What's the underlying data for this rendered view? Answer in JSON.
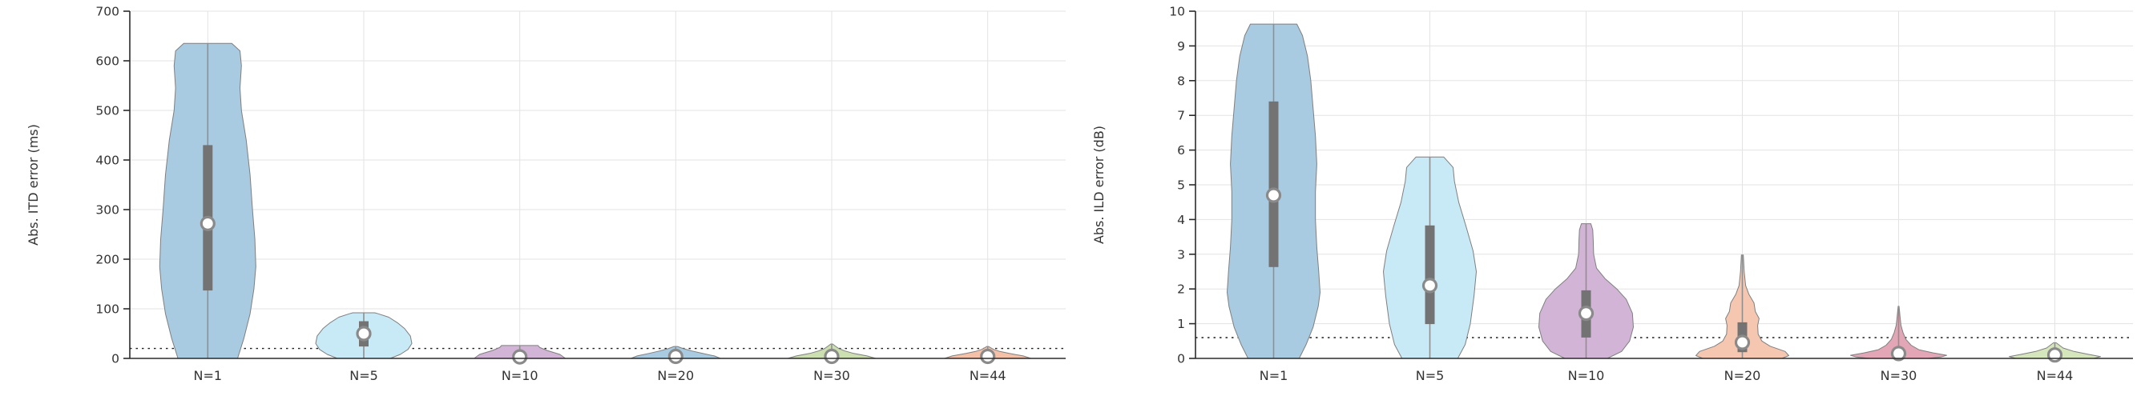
{
  "figure": {
    "background": "#ffffff"
  },
  "style": {
    "violin_edge": "#7f7f7f",
    "box_color": "#737373",
    "whisker_color": "#8f8f8f",
    "median_fill": "#ffffff",
    "median_ring": "#8a8a8a",
    "grid_color": "#e3e3e3",
    "axis_color": "#2b2b2b",
    "threshold_color": "#1f1f1f",
    "tick_label_color": "#333333"
  },
  "chart_data": [
    {
      "type": "violin",
      "title": "",
      "xlabel": "",
      "ylabel": "Abs. ITD error (ms)",
      "ylim": [
        0,
        700
      ],
      "yticks": [
        0,
        100,
        200,
        300,
        400,
        500,
        600,
        700
      ],
      "categories": [
        "N=1",
        "N=5",
        "N=10",
        "N=20",
        "N=30",
        "N=44"
      ],
      "threshold_line": 20,
      "grid": true,
      "legend": "none",
      "violins": [
        {
          "label": "N=1",
          "color": "#a9cbe2",
          "min": 0,
          "max": 635,
          "q1": 137,
          "q3": 430,
          "median": 272,
          "max_halfwidth": 60,
          "profile": [
            [
              0,
              0.62
            ],
            [
              40,
              0.75
            ],
            [
              90,
              0.88
            ],
            [
              140,
              0.96
            ],
            [
              185,
              1.0
            ],
            [
              240,
              0.98
            ],
            [
              300,
              0.93
            ],
            [
              370,
              0.88
            ],
            [
              440,
              0.8
            ],
            [
              500,
              0.7
            ],
            [
              545,
              0.67
            ],
            [
              590,
              0.7
            ],
            [
              620,
              0.67
            ],
            [
              635,
              0.5
            ]
          ]
        },
        {
          "label": "N=5",
          "color": "#c8e9f6",
          "min": 0,
          "max": 92,
          "q1": 24,
          "q3": 75,
          "median": 50,
          "max_halfwidth": 60,
          "profile": [
            [
              0,
              0.55
            ],
            [
              8,
              0.76
            ],
            [
              18,
              0.92
            ],
            [
              30,
              1.0
            ],
            [
              45,
              0.97
            ],
            [
              60,
              0.85
            ],
            [
              72,
              0.7
            ],
            [
              83,
              0.52
            ],
            [
              90,
              0.3
            ],
            [
              92,
              0.23
            ]
          ]
        },
        {
          "label": "N=10",
          "color": "#d2b4d6",
          "min": 0,
          "max": 26,
          "q1": 1,
          "q3": 9,
          "median": 3,
          "max_halfwidth": 57,
          "profile": [
            [
              0,
              1.0
            ],
            [
              8,
              0.88
            ],
            [
              16,
              0.6
            ],
            [
              22,
              0.44
            ],
            [
              26,
              0.4
            ]
          ]
        },
        {
          "label": "N=20",
          "color": "#a9cbe2",
          "min": 0,
          "max": 24,
          "q1": 1,
          "q3": 8,
          "median": 4,
          "max_halfwidth": 56,
          "profile": [
            [
              0,
              1.0
            ],
            [
              5,
              0.86
            ],
            [
              10,
              0.6
            ],
            [
              15,
              0.36
            ],
            [
              20,
              0.16
            ],
            [
              24,
              0.04
            ]
          ]
        },
        {
          "label": "N=30",
          "color": "#cbdfb0",
          "min": 0,
          "max": 29,
          "q1": 1,
          "q3": 9,
          "median": 4,
          "max_halfwidth": 55,
          "profile": [
            [
              0,
              1.0
            ],
            [
              5,
              0.8
            ],
            [
              10,
              0.5
            ],
            [
              15,
              0.3
            ],
            [
              20,
              0.16
            ],
            [
              25,
              0.08
            ],
            [
              29,
              0.02
            ]
          ]
        },
        {
          "label": "N=44",
          "color": "#f4c0a8",
          "min": 0,
          "max": 24,
          "q1": 1,
          "q3": 8,
          "median": 4,
          "max_halfwidth": 54,
          "profile": [
            [
              0,
              1.0
            ],
            [
              5,
              0.82
            ],
            [
              10,
              0.5
            ],
            [
              14,
              0.28
            ],
            [
              18,
              0.14
            ],
            [
              22,
              0.06
            ],
            [
              24,
              0.02
            ]
          ]
        }
      ]
    },
    {
      "type": "violin",
      "title": "",
      "xlabel": "",
      "ylabel": "Abs. ILD error (dB)",
      "ylim": [
        0,
        10
      ],
      "yticks": [
        0,
        1,
        2,
        3,
        4,
        5,
        6,
        7,
        8,
        9,
        10
      ],
      "categories": [
        "N=1",
        "N=5",
        "N=10",
        "N=20",
        "N=30",
        "N=44"
      ],
      "threshold_line": 0.6,
      "grid": true,
      "legend": "none",
      "violins": [
        {
          "label": "N=1",
          "color": "#a9cbe2",
          "min": 0,
          "max": 9.63,
          "q1": 2.63,
          "q3": 7.4,
          "median": 4.7,
          "max_halfwidth": 58,
          "profile": [
            [
              0,
              0.55
            ],
            [
              0.4,
              0.7
            ],
            [
              0.9,
              0.85
            ],
            [
              1.5,
              0.96
            ],
            [
              1.9,
              1.0
            ],
            [
              2.5,
              0.97
            ],
            [
              3.2,
              0.93
            ],
            [
              4.0,
              0.9
            ],
            [
              4.8,
              0.9
            ],
            [
              5.6,
              0.93
            ],
            [
              6.4,
              0.9
            ],
            [
              7.2,
              0.85
            ],
            [
              8.0,
              0.8
            ],
            [
              8.7,
              0.73
            ],
            [
              9.3,
              0.62
            ],
            [
              9.63,
              0.5
            ]
          ]
        },
        {
          "label": "N=5",
          "color": "#c8e9f6",
          "min": 0,
          "max": 5.8,
          "q1": 0.99,
          "q3": 3.83,
          "median": 2.1,
          "max_halfwidth": 58,
          "profile": [
            [
              0,
              0.6
            ],
            [
              0.4,
              0.76
            ],
            [
              1.0,
              0.87
            ],
            [
              1.8,
              0.95
            ],
            [
              2.5,
              1.0
            ],
            [
              3.1,
              0.93
            ],
            [
              3.8,
              0.78
            ],
            [
              4.5,
              0.62
            ],
            [
              5.1,
              0.53
            ],
            [
              5.5,
              0.5
            ],
            [
              5.8,
              0.3
            ]
          ]
        },
        {
          "label": "N=10",
          "color": "#d2b4d6",
          "min": 0,
          "max": 3.88,
          "q1": 0.6,
          "q3": 1.96,
          "median": 1.3,
          "max_halfwidth": 59,
          "profile": [
            [
              0,
              0.45
            ],
            [
              0.2,
              0.75
            ],
            [
              0.5,
              0.92
            ],
            [
              0.9,
              1.0
            ],
            [
              1.3,
              0.98
            ],
            [
              1.7,
              0.85
            ],
            [
              2.0,
              0.65
            ],
            [
              2.3,
              0.4
            ],
            [
              2.6,
              0.22
            ],
            [
              3.0,
              0.16
            ],
            [
              3.4,
              0.15
            ],
            [
              3.7,
              0.14
            ],
            [
              3.88,
              0.1
            ]
          ]
        },
        {
          "label": "N=20",
          "color": "#f5c7b0",
          "min": 0,
          "max": 2.98,
          "q1": 0.18,
          "q3": 1.04,
          "median": 0.46,
          "max_halfwidth": 58,
          "profile": [
            [
              0,
              0.85
            ],
            [
              0.08,
              1.0
            ],
            [
              0.2,
              0.92
            ],
            [
              0.35,
              0.6
            ],
            [
              0.5,
              0.42
            ],
            [
              0.7,
              0.34
            ],
            [
              0.95,
              0.33
            ],
            [
              1.15,
              0.36
            ],
            [
              1.35,
              0.28
            ],
            [
              1.6,
              0.25
            ],
            [
              1.85,
              0.14
            ],
            [
              2.1,
              0.07
            ],
            [
              2.5,
              0.04
            ],
            [
              2.98,
              0.02
            ]
          ]
        },
        {
          "label": "N=30",
          "color": "#e2a6b6",
          "min": 0,
          "max": 1.5,
          "q1": 0.04,
          "q3": 0.32,
          "median": 0.14,
          "max_halfwidth": 60,
          "profile": [
            [
              0,
              0.6
            ],
            [
              0.04,
              0.88
            ],
            [
              0.09,
              1.0
            ],
            [
              0.16,
              0.72
            ],
            [
              0.25,
              0.42
            ],
            [
              0.38,
              0.26
            ],
            [
              0.55,
              0.15
            ],
            [
              0.75,
              0.09
            ],
            [
              0.95,
              0.05
            ],
            [
              1.2,
              0.03
            ],
            [
              1.5,
              0.01
            ]
          ]
        },
        {
          "label": "N=44",
          "color": "#d6e6bc",
          "min": 0,
          "max": 0.45,
          "q1": 0.03,
          "q3": 0.18,
          "median": 0.1,
          "max_halfwidth": 57,
          "profile": [
            [
              0,
              0.85
            ],
            [
              0.05,
              1.0
            ],
            [
              0.12,
              0.72
            ],
            [
              0.2,
              0.42
            ],
            [
              0.3,
              0.18
            ],
            [
              0.45,
              0.03
            ]
          ]
        }
      ]
    }
  ]
}
